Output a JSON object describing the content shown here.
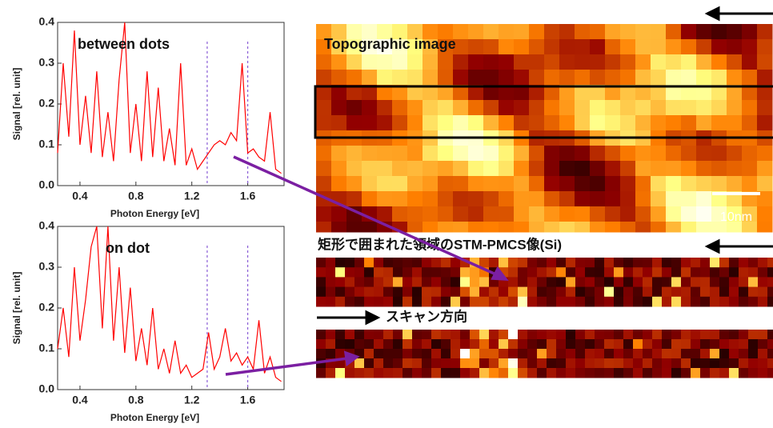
{
  "chart_data": [
    {
      "type": "line",
      "annotation": "between dots",
      "xlabel": "Photon Energy [eV]",
      "ylabel": "Signal [rel. unit]",
      "x": [
        0.24,
        0.28,
        0.32,
        0.36,
        0.4,
        0.44,
        0.48,
        0.52,
        0.56,
        0.6,
        0.64,
        0.68,
        0.72,
        0.76,
        0.8,
        0.84,
        0.88,
        0.92,
        0.96,
        1.0,
        1.04,
        1.08,
        1.12,
        1.16,
        1.2,
        1.24,
        1.28,
        1.32,
        1.36,
        1.4,
        1.44,
        1.48,
        1.52,
        1.56,
        1.6,
        1.64,
        1.68,
        1.72,
        1.76,
        1.8,
        1.84
      ],
      "series": [
        {
          "color": "#ff0000",
          "values": [
            0.08,
            0.3,
            0.12,
            0.38,
            0.1,
            0.22,
            0.08,
            0.28,
            0.07,
            0.18,
            0.06,
            0.26,
            0.4,
            0.08,
            0.2,
            0.06,
            0.28,
            0.07,
            0.24,
            0.06,
            0.14,
            0.05,
            0.3,
            0.05,
            0.09,
            0.04,
            0.06,
            0.08,
            0.1,
            0.11,
            0.1,
            0.13,
            0.11,
            0.3,
            0.08,
            0.09,
            0.07,
            0.06,
            0.18,
            0.04,
            0.03
          ]
        }
      ],
      "xlim": [
        0.24,
        1.86
      ],
      "ylim": [
        0,
        0.4
      ],
      "xticks": [
        0.4,
        0.8,
        1.2,
        1.6
      ],
      "yticks": [
        {
          "value": 0,
          "label": "0.0"
        },
        0.1,
        0.2,
        0.3,
        0.4
      ],
      "vlines": [
        1.31,
        1.6
      ],
      "vline_color": "#8a5cd6"
    },
    {
      "type": "line",
      "annotation": "on dot",
      "xlabel": "Photon Energy [eV]",
      "ylabel": "Signal [rel. unit]",
      "x": [
        0.24,
        0.28,
        0.32,
        0.36,
        0.4,
        0.44,
        0.48,
        0.52,
        0.56,
        0.6,
        0.64,
        0.68,
        0.72,
        0.76,
        0.8,
        0.84,
        0.88,
        0.92,
        0.96,
        1.0,
        1.04,
        1.08,
        1.12,
        1.16,
        1.2,
        1.24,
        1.28,
        1.32,
        1.36,
        1.4,
        1.44,
        1.48,
        1.52,
        1.56,
        1.6,
        1.64,
        1.68,
        1.72,
        1.76,
        1.8,
        1.84
      ],
      "series": [
        {
          "color": "#ff0000",
          "values": [
            0.1,
            0.2,
            0.08,
            0.3,
            0.12,
            0.22,
            0.35,
            0.4,
            0.15,
            0.4,
            0.12,
            0.3,
            0.09,
            0.25,
            0.07,
            0.15,
            0.06,
            0.2,
            0.05,
            0.1,
            0.04,
            0.12,
            0.04,
            0.06,
            0.03,
            0.04,
            0.05,
            0.14,
            0.05,
            0.08,
            0.15,
            0.07,
            0.09,
            0.06,
            0.08,
            0.05,
            0.17,
            0.04,
            0.08,
            0.03,
            0.02
          ]
        }
      ],
      "xlim": [
        0.24,
        1.86
      ],
      "ylim": [
        0,
        0.4
      ],
      "xticks": [
        0.4,
        0.8,
        1.2,
        1.6
      ],
      "yticks": [
        {
          "value": 0,
          "label": "0.0"
        },
        0.1,
        0.2,
        0.3,
        0.4
      ],
      "vlines": [
        1.31,
        1.6
      ],
      "vline_color": "#8a5cd6"
    }
  ],
  "figure": {
    "image_title": "Topographic image",
    "scale_label": "10nm",
    "pmcs_title": "矩形で囲まれた領域のSTM-PMCS像(Si)",
    "scan_label": "スキャン方向"
  }
}
